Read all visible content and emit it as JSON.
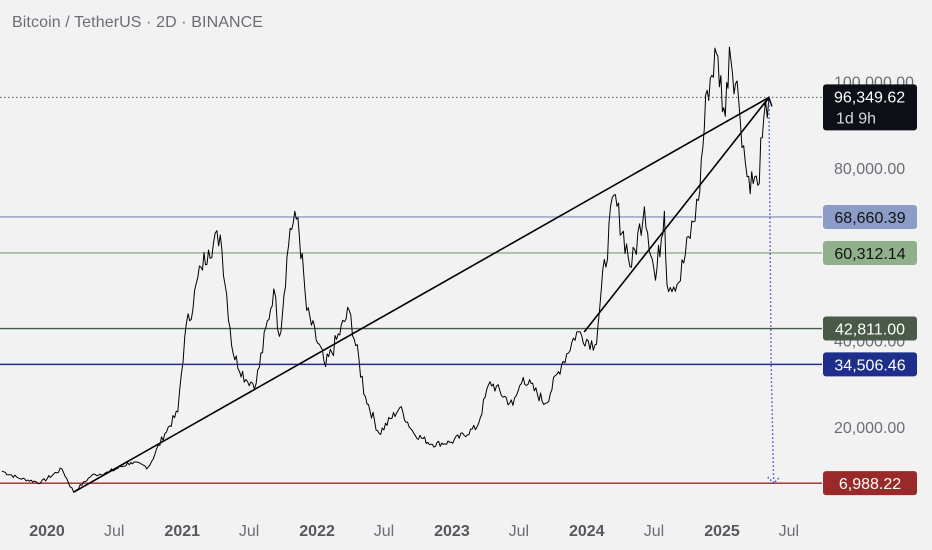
{
  "header": {
    "title": "Bitcoin / TetherUS · 2D · BINANCE"
  },
  "colors": {
    "background": "#f2f2f2",
    "price_line": "#000000",
    "blue_level": "#8b9dc7",
    "green_level": "#8fb08a",
    "dark_green_level": "#4a5a48",
    "navy_level": "#1d2f8a",
    "red_level": "#9a2a2a",
    "dotted_arrow": "#3d55c9",
    "current_price_tag": "#0d0f17"
  },
  "chart_data": {
    "type": "line",
    "title": "Bitcoin / TetherUS · 2D · BINANCE",
    "xlabel": "",
    "ylabel": "",
    "ylim": [
      0,
      115000
    ],
    "xlim": [
      "2019-09-01",
      "2025-08-01"
    ],
    "grid": false,
    "x_ticks": [
      {
        "date": "2020-01-01",
        "label": "2020",
        "year": true
      },
      {
        "date": "2020-07-01",
        "label": "Jul",
        "year": false
      },
      {
        "date": "2021-01-01",
        "label": "2021",
        "year": true
      },
      {
        "date": "2021-07-01",
        "label": "Jul",
        "year": false
      },
      {
        "date": "2022-01-01",
        "label": "2022",
        "year": true
      },
      {
        "date": "2022-07-01",
        "label": "Jul",
        "year": false
      },
      {
        "date": "2023-01-01",
        "label": "2023",
        "year": true
      },
      {
        "date": "2023-07-01",
        "label": "Jul",
        "year": false
      },
      {
        "date": "2024-01-01",
        "label": "2024",
        "year": true
      },
      {
        "date": "2024-07-01",
        "label": "Jul",
        "year": false
      },
      {
        "date": "2025-01-01",
        "label": "2025",
        "year": true
      },
      {
        "date": "2025-07-01",
        "label": "Jul",
        "year": false
      }
    ],
    "y_ticks": [
      {
        "value": 100000,
        "label": "100,000.00"
      },
      {
        "value": 80000,
        "label": "80,000.00"
      },
      {
        "value": 40000,
        "label": "40,000.00"
      },
      {
        "value": 20000,
        "label": "20,000.00"
      }
    ],
    "series": [
      {
        "x": [
          "2019-09-01",
          "2019-10-15",
          "2019-12-15",
          "2020-02-10",
          "2020-03-13",
          "2020-05-01",
          "2020-06-15",
          "2020-08-15",
          "2020-10-01",
          "2020-11-15",
          "2020-12-20",
          "2021-01-08",
          "2021-02-21",
          "2021-03-13",
          "2021-04-14",
          "2021-05-19",
          "2021-06-22",
          "2021-07-20",
          "2021-09-06",
          "2021-09-21",
          "2021-10-20",
          "2021-11-10",
          "2021-12-04",
          "2022-01-24",
          "2022-03-29",
          "2022-05-12",
          "2022-06-18",
          "2022-08-13",
          "2022-09-20",
          "2022-11-09",
          "2022-12-30",
          "2023-03-10",
          "2023-04-14",
          "2023-06-15",
          "2023-07-13",
          "2023-09-11",
          "2023-10-25",
          "2023-12-05",
          "2024-01-23",
          "2024-03-14",
          "2024-05-01",
          "2024-06-05",
          "2024-07-05",
          "2024-07-29",
          "2024-08-05",
          "2024-09-06",
          "2024-10-29",
          "2024-11-22",
          "2024-12-17",
          "2025-01-10",
          "2025-01-21",
          "2025-02-15",
          "2025-03-10",
          "2025-04-08",
          "2025-04-20",
          "2025-05-08"
        ],
        "values": [
          9800,
          8200,
          7100,
          10300,
          4900,
          8800,
          9500,
          11800,
          10700,
          18500,
          23500,
          41000,
          57000,
          61000,
          64500,
          37000,
          31000,
          30000,
          52000,
          41000,
          66000,
          68500,
          47000,
          34000,
          47000,
          27000,
          18500,
          24500,
          18500,
          16000,
          16500,
          20000,
          30500,
          25000,
          31500,
          25500,
          34500,
          42000,
          39000,
          73700,
          57000,
          71000,
          54000,
          70000,
          53000,
          53500,
          72500,
          98000,
          106500,
          92000,
          108000,
          96000,
          78000,
          76000,
          87000,
          96349.62
        ]
      }
    ],
    "trendlines": [
      {
        "from": {
          "x": "2020-03-13",
          "y": 4900
        },
        "to": {
          "x": "2025-05-08",
          "y": 96349.62
        }
      },
      {
        "from": {
          "x": "2023-12-25",
          "y": 42000
        },
        "to": {
          "x": "2025-05-08",
          "y": 96349.62
        }
      }
    ],
    "levels": [
      {
        "value": 68660.39,
        "label": "68,660.39",
        "color": "#8b9dc7",
        "text_color": "#111111"
      },
      {
        "value": 60312.14,
        "label": "60,312.14",
        "color": "#8fb08a",
        "text_color": "#111111"
      },
      {
        "value": 42811.0,
        "label": "42,811.00",
        "color": "#4a5a48",
        "text_color": "#ffffff"
      },
      {
        "value": 34506.46,
        "label": "34,506.46",
        "color": "#1d2f8a",
        "text_color": "#ffffff"
      },
      {
        "value": 6988.22,
        "label": "6,988.22",
        "color": "#9a2a2a",
        "text_color": "#ffffff"
      }
    ],
    "projection": {
      "from": {
        "x": "2025-05-08",
        "y": 96349.62
      },
      "via": {
        "x": "2025-05-14",
        "y": 34506.46
      },
      "to": {
        "x": "2025-05-21",
        "y": 6988.22
      }
    },
    "current_price": {
      "value": 96349.62,
      "label": "96,349.62",
      "countdown": "1d 9h"
    }
  }
}
